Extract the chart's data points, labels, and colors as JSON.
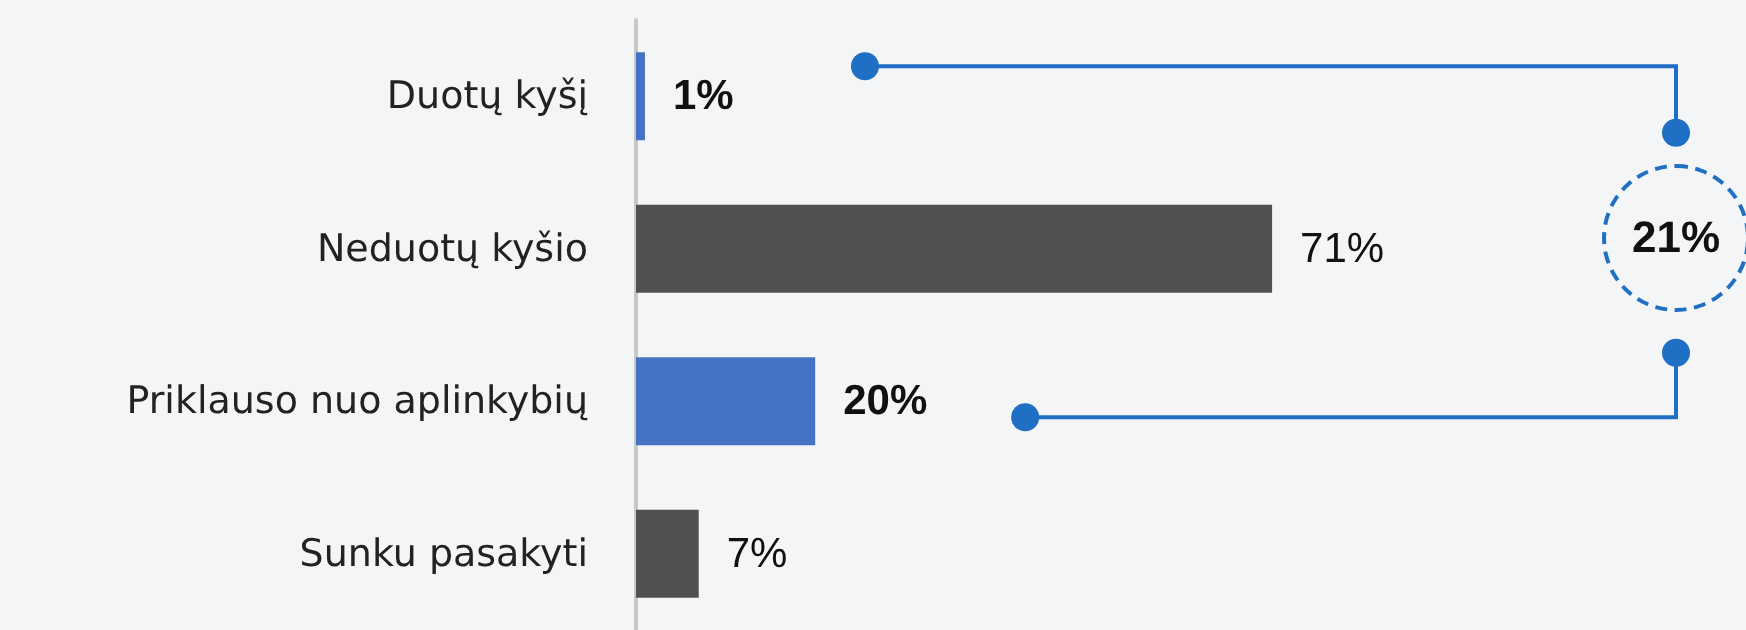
{
  "chart_data": {
    "type": "bar",
    "orientation": "horizontal",
    "categories": [
      "Duotų kyšį",
      "Neduotų kyšio",
      "Priklauso nuo aplinkybių",
      "Sunku pasakyti"
    ],
    "values": [
      1,
      71,
      20,
      7
    ],
    "colors": [
      "#4472c4",
      "#505050",
      "#4472c4",
      "#505050"
    ],
    "value_labels": [
      "1%",
      "71%",
      "20%",
      "7%"
    ],
    "annotations": [
      "21%"
    ]
  }
}
